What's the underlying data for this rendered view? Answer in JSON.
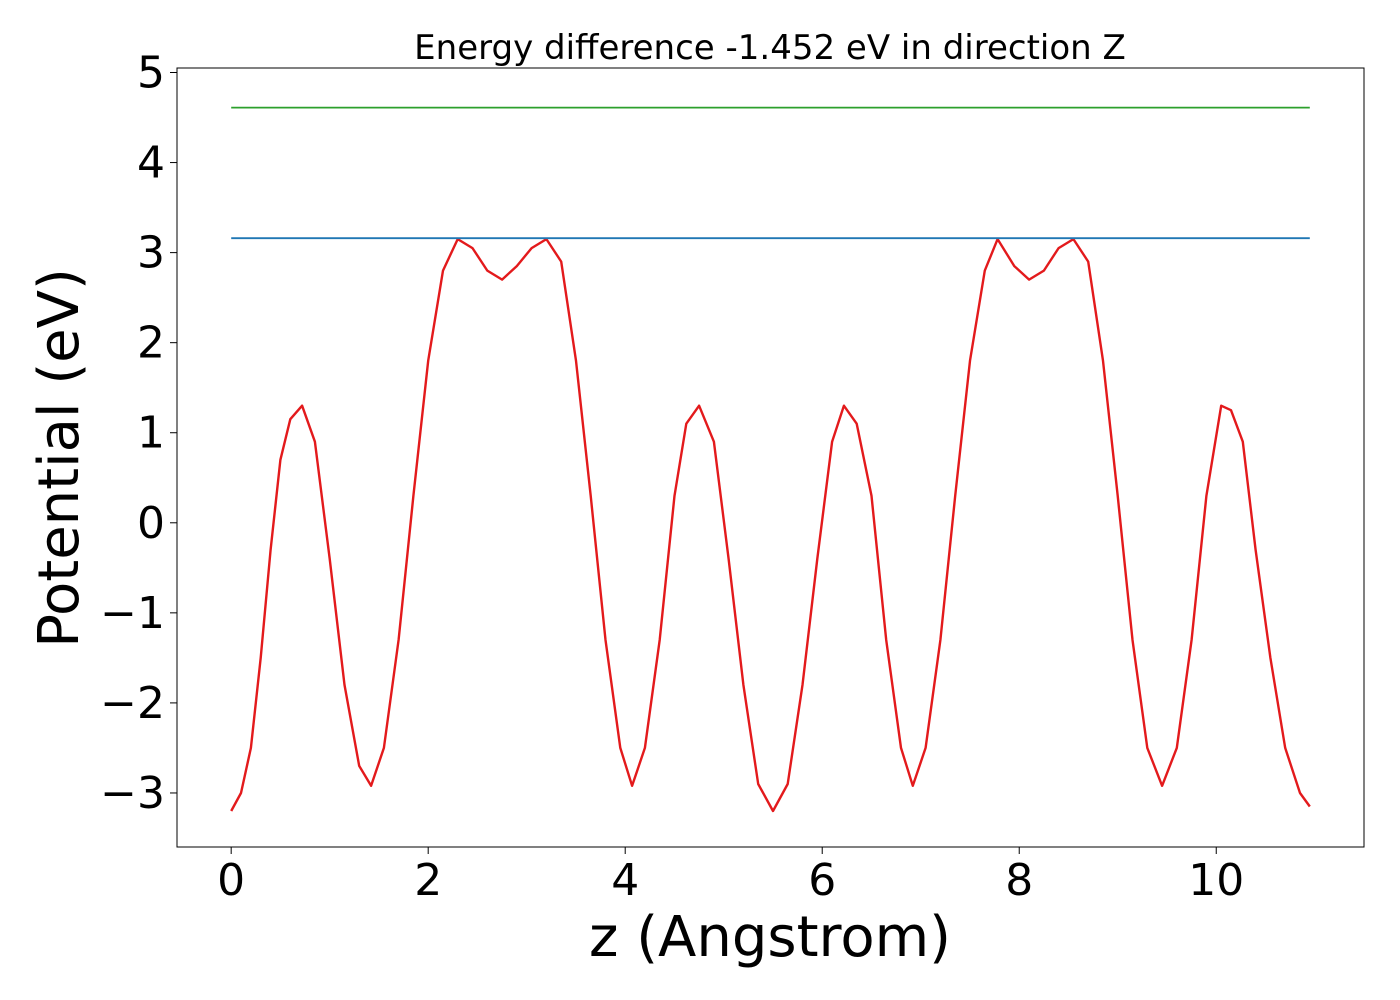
{
  "chart_data": {
    "type": "line",
    "title": "Energy difference -1.452 eV in direction Z",
    "xlabel": "z (Angstrom)",
    "ylabel": "Potential (eV)",
    "xlim": [
      -0.55,
      11.5
    ],
    "ylim": [
      -3.6,
      5.05
    ],
    "xticks": [
      0,
      2,
      4,
      6,
      8,
      10
    ],
    "yticks": [
      -3,
      -2,
      -1,
      0,
      1,
      2,
      3,
      4,
      5
    ],
    "xtick_labels": [
      "0",
      "2",
      "4",
      "6",
      "8",
      "10"
    ],
    "ytick_labels": [
      "−3",
      "−2",
      "−1",
      "0",
      "1",
      "2",
      "3",
      "4",
      "5"
    ],
    "grid": false,
    "series": [
      {
        "color": "#e31a1c",
        "x": [
          0.0,
          0.1,
          0.2,
          0.3,
          0.4,
          0.5,
          0.6,
          0.72,
          0.85,
          1.0,
          1.15,
          1.3,
          1.42,
          1.55,
          1.7,
          1.85,
          2.0,
          2.15,
          2.3,
          2.45,
          2.6,
          2.75,
          2.9,
          3.05,
          3.2,
          3.35,
          3.5,
          3.65,
          3.8,
          3.95,
          4.07,
          4.2,
          4.35,
          4.5,
          4.62,
          4.75,
          4.9,
          5.05,
          5.2,
          5.35,
          5.5,
          5.65,
          5.8,
          5.95,
          6.1,
          6.22,
          6.35,
          6.5,
          6.65,
          6.8,
          6.92,
          7.05,
          7.2,
          7.35,
          7.5,
          7.65,
          7.78,
          7.95,
          8.1,
          8.25,
          8.4,
          8.55,
          8.7,
          8.85,
          9.0,
          9.15,
          9.3,
          9.45,
          9.6,
          9.75,
          9.9,
          10.05,
          10.15,
          10.27,
          10.4,
          10.55,
          10.7,
          10.85,
          10.95
        ],
        "y": [
          -3.2,
          -3.0,
          -2.5,
          -1.5,
          -0.3,
          0.7,
          1.15,
          1.3,
          0.9,
          -0.4,
          -1.8,
          -2.7,
          -2.92,
          -2.5,
          -1.3,
          0.3,
          1.8,
          2.8,
          3.15,
          3.05,
          2.8,
          2.7,
          2.85,
          3.05,
          3.15,
          2.9,
          1.8,
          0.3,
          -1.3,
          -2.5,
          -2.92,
          -2.5,
          -1.3,
          0.3,
          1.1,
          1.3,
          0.9,
          -0.4,
          -1.8,
          -2.9,
          -3.2,
          -2.9,
          -1.8,
          -0.4,
          0.9,
          1.3,
          1.1,
          0.3,
          -1.3,
          -2.5,
          -2.92,
          -2.5,
          -1.3,
          0.3,
          1.8,
          2.8,
          3.15,
          2.85,
          2.7,
          2.8,
          3.05,
          3.15,
          2.9,
          1.8,
          0.3,
          -1.3,
          -2.5,
          -2.92,
          -2.5,
          -1.3,
          0.3,
          1.3,
          1.25,
          0.9,
          -0.3,
          -1.5,
          -2.5,
          -3.0,
          -3.15
        ]
      },
      {
        "color": "#1f77b4",
        "x": [
          0.0,
          10.95
        ],
        "y": [
          3.16,
          3.16
        ]
      },
      {
        "color": "#2ca02c",
        "x": [
          0.0,
          10.95
        ],
        "y": [
          4.61,
          4.61
        ]
      }
    ]
  }
}
